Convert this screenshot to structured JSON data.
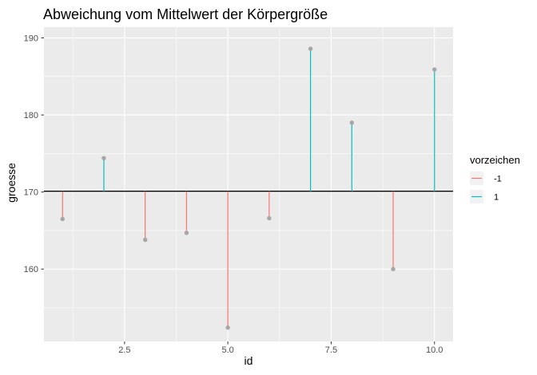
{
  "chart_data": {
    "type": "lollipop",
    "title": "Abweichung vom Mittelwert der Körpergröße",
    "xlabel": "id",
    "ylabel": "groesse",
    "xlim": [
      0.55,
      10.45
    ],
    "ylim": [
      150.6,
      191.4
    ],
    "x_ticks": [
      2.5,
      5.0,
      7.5,
      10.0
    ],
    "x_tick_labels": [
      "2.5",
      "5.0",
      "7.5",
      "10.0"
    ],
    "y_ticks": [
      160,
      170,
      180,
      190
    ],
    "y_tick_labels": [
      "160",
      "170",
      "180",
      "190"
    ],
    "mean_line": 170.1,
    "grid": true,
    "legend": {
      "title": "vorzeichen",
      "position": "right",
      "entries": [
        {
          "label": "-1",
          "color": "#F8766D"
        },
        {
          "label": "1",
          "color": "#00BFC4"
        }
      ]
    },
    "points": [
      {
        "id": 1,
        "groesse": 166.5,
        "vorzeichen": -1
      },
      {
        "id": 2,
        "groesse": 174.4,
        "vorzeichen": 1
      },
      {
        "id": 3,
        "groesse": 163.8,
        "vorzeichen": -1
      },
      {
        "id": 4,
        "groesse": 164.7,
        "vorzeichen": -1
      },
      {
        "id": 5,
        "groesse": 152.4,
        "vorzeichen": -1
      },
      {
        "id": 6,
        "groesse": 166.6,
        "vorzeichen": -1
      },
      {
        "id": 7,
        "groesse": 188.6,
        "vorzeichen": 1
      },
      {
        "id": 8,
        "groesse": 179.0,
        "vorzeichen": 1
      },
      {
        "id": 9,
        "groesse": 160.0,
        "vorzeichen": -1
      },
      {
        "id": 10,
        "groesse": 185.9,
        "vorzeichen": 1
      }
    ],
    "colors": {
      "panel_bg": "#EBEBEB",
      "grid_major": "#FFFFFF",
      "point": "#A6A6A6",
      "mean_line": "#000000",
      "negative": "#F8766D",
      "positive": "#00BFC4"
    }
  }
}
